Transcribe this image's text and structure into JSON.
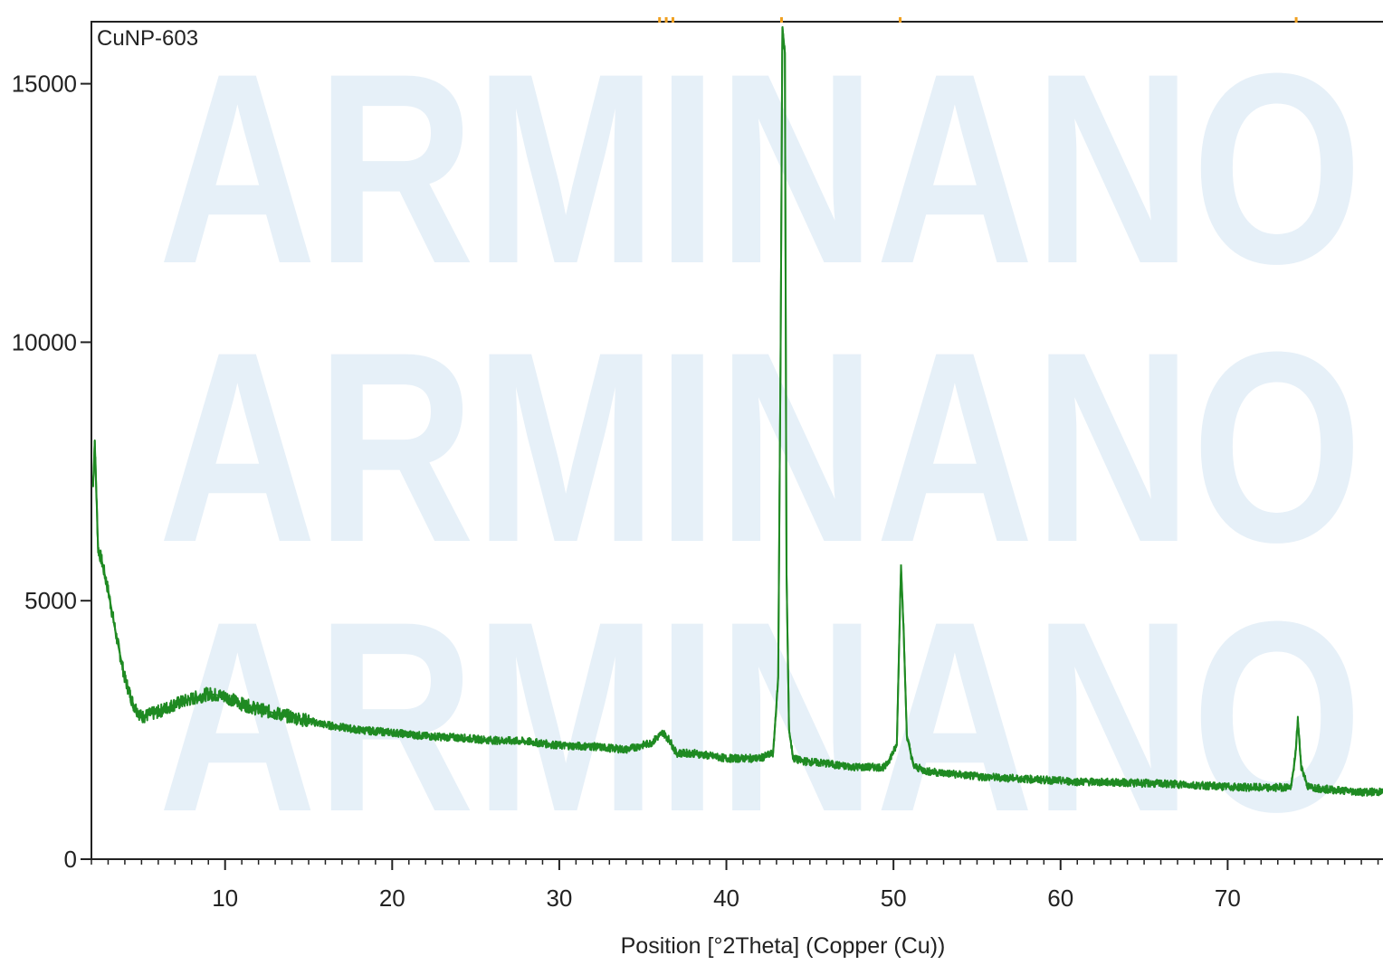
{
  "watermark": {
    "text": "ARMINANO",
    "color": "#e6f0f8"
  },
  "chart_data": {
    "type": "line",
    "title": "",
    "sample_label": "CuNP-603",
    "xlabel": "Position [°2Theta] (Copper (Cu))",
    "ylabel": "",
    "xlim": [
      2,
      80
    ],
    "ylim": [
      0,
      16200
    ],
    "xticks": [
      10,
      20,
      30,
      40,
      50,
      60,
      70
    ],
    "xtick_labels": [
      "10",
      "20",
      "30",
      "40",
      "50",
      "60",
      "70"
    ],
    "yticks": [
      0,
      5000,
      10000,
      15000
    ],
    "ytick_labels": [
      "0",
      "5000",
      "10000",
      "15000"
    ],
    "grid": false,
    "legend": "none",
    "series": [
      {
        "color": "#1f8a22",
        "x": [
          2.1,
          2.2,
          2.4,
          2.6,
          3.0,
          3.5,
          4.0,
          4.5,
          5.0,
          6.0,
          7.0,
          8.0,
          9.0,
          10.0,
          11.0,
          12.0,
          14.0,
          16.0,
          18.0,
          20.0,
          22.0,
          24.0,
          26.0,
          28.0,
          30.0,
          32.0,
          34.0,
          35.5,
          36.2,
          36.6,
          37.0,
          38.0,
          40.0,
          42.0,
          42.8,
          43.1,
          43.25,
          43.35,
          43.5,
          43.6,
          43.75,
          44.0,
          44.5,
          46.0,
          47.0,
          48.0,
          49.5,
          50.2,
          50.45,
          50.6,
          50.8,
          51.2,
          52.0,
          55.0,
          58.0,
          61.0,
          64.0,
          67.0,
          70.0,
          72.5,
          73.8,
          74.05,
          74.2,
          74.4,
          74.8,
          76.0,
          78.0,
          80.0
        ],
        "y": [
          7200,
          8100,
          6000,
          5800,
          5200,
          4300,
          3500,
          3000,
          2750,
          2850,
          3000,
          3100,
          3200,
          3150,
          3000,
          2900,
          2750,
          2600,
          2500,
          2450,
          2380,
          2350,
          2300,
          2280,
          2200,
          2180,
          2120,
          2250,
          2450,
          2300,
          2050,
          2050,
          1950,
          1950,
          2050,
          3500,
          10000,
          16100,
          15600,
          5500,
          2500,
          1950,
          1900,
          1850,
          1800,
          1780,
          1780,
          2200,
          5700,
          4500,
          2400,
          1800,
          1700,
          1600,
          1550,
          1500,
          1480,
          1450,
          1400,
          1380,
          1400,
          2000,
          2700,
          1800,
          1400,
          1350,
          1300,
          1300
        ]
      }
    ],
    "top_markers_x": [
      36.0,
      36.4,
      36.8,
      43.3,
      50.4,
      74.1
    ],
    "top_marker_color": "#f0a020"
  }
}
